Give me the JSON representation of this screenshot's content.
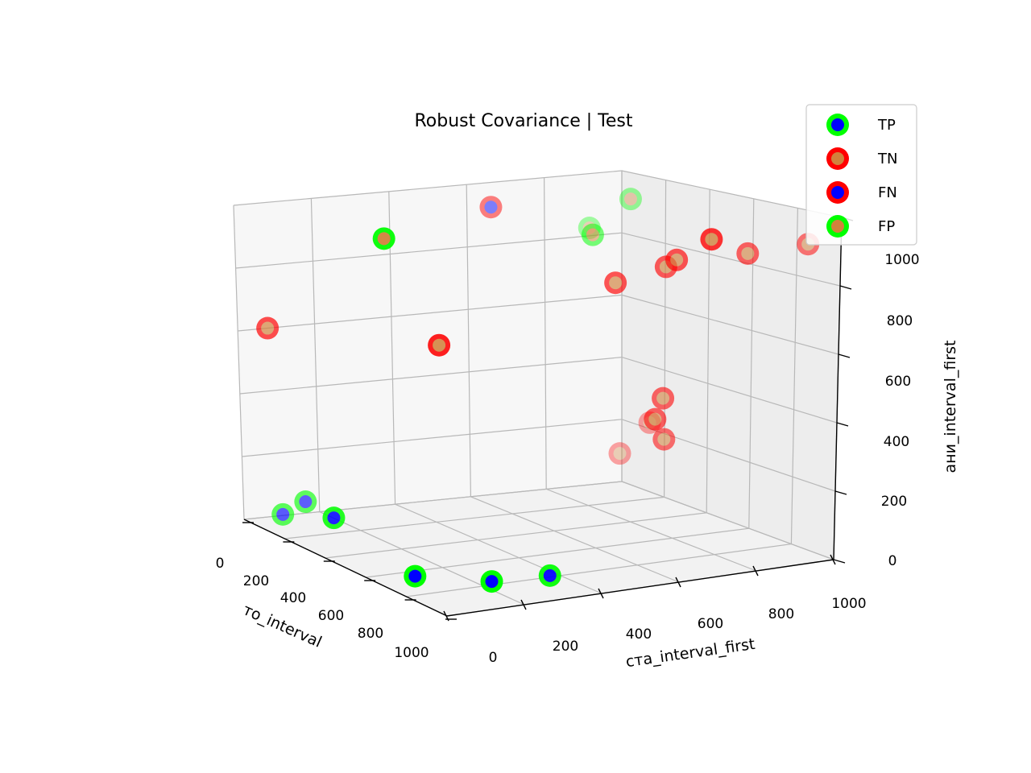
{
  "chart_data": {
    "type": "scatter",
    "projection": "3d",
    "title": "Robust Covariance | Test",
    "xlabel": "то_interval",
    "ylabel": "ста_interval_first",
    "zlabel": "ани_interval_first",
    "xlim": [
      0,
      1000
    ],
    "ylim": [
      0,
      1000
    ],
    "zlim": [
      0,
      1000
    ],
    "xticks": [
      "0",
      "200",
      "400",
      "600",
      "800",
      "1000"
    ],
    "yticks": [
      "0",
      "200",
      "400",
      "600",
      "800",
      "1000"
    ],
    "zticks": [
      "0",
      "200",
      "400",
      "600",
      "800",
      "1000"
    ],
    "grid": true,
    "legend_position": "top-right",
    "legend": [
      {
        "label": "TP",
        "edge": "#00ff00",
        "face": "#0000ff"
      },
      {
        "label": "TN",
        "edge": "#ff0000",
        "face": "#d2823c"
      },
      {
        "label": "FN",
        "edge": "#ff0000",
        "face": "#0000ff"
      },
      {
        "label": "FP",
        "edge": "#00ff00",
        "face": "#d2823c"
      }
    ],
    "series": [
      {
        "name": "TP",
        "points": [
          {
            "x": 250,
            "y": 50,
            "z": 40
          },
          {
            "x": 120,
            "y": 180,
            "z": 40
          },
          {
            "x": 100,
            "y": 320,
            "z": 40
          },
          {
            "x": 900,
            "y": 50,
            "z": 40
          },
          {
            "x": 880,
            "y": 100,
            "z": 80
          },
          {
            "x": 550,
            "y": 0,
            "z": 140
          }
        ]
      },
      {
        "name": "TN",
        "points": [
          {
            "x": 850,
            "y": 0,
            "z": 650
          },
          {
            "x": 150,
            "y": 850,
            "z": 900
          },
          {
            "x": 650,
            "y": 800,
            "z": 200
          },
          {
            "x": 600,
            "y": 850,
            "z": 300
          },
          {
            "x": 150,
            "y": 1000,
            "z": 900
          },
          {
            "x": 350,
            "y": 180,
            "z": 700
          },
          {
            "x": 300,
            "y": 700,
            "z": 400
          },
          {
            "x": 300,
            "y": 720,
            "z": 460
          },
          {
            "x": 350,
            "y": 750,
            "z": 320
          },
          {
            "x": 200,
            "y": 700,
            "z": 900
          },
          {
            "x": 300,
            "y": 600,
            "z": 830
          },
          {
            "x": 250,
            "y": 700,
            "z": 870
          },
          {
            "x": 0,
            "y": 680,
            "z": 1000
          }
        ]
      },
      {
        "name": "FN",
        "points": [
          {
            "x": 700,
            "y": 500,
            "z": 1000
          }
        ]
      },
      {
        "name": "FP",
        "points": [
          {
            "x": 700,
            "y": 750,
            "z": 900
          },
          {
            "x": 600,
            "y": 800,
            "z": 1000
          },
          {
            "x": 500,
            "y": 650,
            "z": 930
          },
          {
            "x": 350,
            "y": 50,
            "z": 1050
          }
        ]
      }
    ]
  }
}
